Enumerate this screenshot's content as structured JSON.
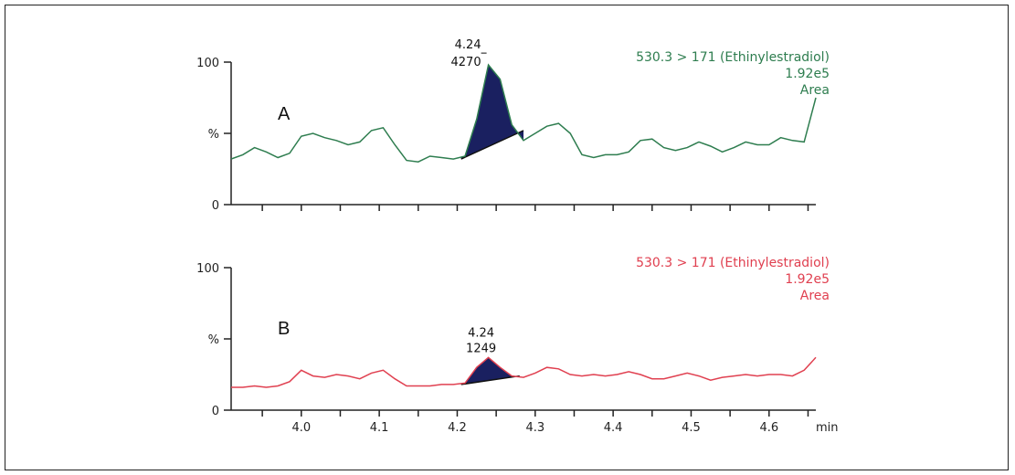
{
  "chart_data": [
    {
      "type": "line",
      "panel_label": "A",
      "color": "#2e7d4f",
      "fill_color": "#1a2060",
      "info_lines": [
        "530.3 > 171 (Ethinylestradiol)",
        "1.92e5",
        "Area"
      ],
      "y_tick_labels": [
        "100",
        "%",
        "0"
      ],
      "ylim": [
        0,
        100
      ],
      "xlim": [
        3.91,
        4.66
      ],
      "x": [
        3.91,
        3.925,
        3.94,
        3.955,
        3.97,
        3.985,
        4.0,
        4.015,
        4.03,
        4.045,
        4.06,
        4.075,
        4.09,
        4.105,
        4.12,
        4.135,
        4.15,
        4.165,
        4.18,
        4.195,
        4.21,
        4.225,
        4.24,
        4.255,
        4.27,
        4.285,
        4.3,
        4.315,
        4.33,
        4.345,
        4.36,
        4.375,
        4.39,
        4.405,
        4.42,
        4.435,
        4.45,
        4.465,
        4.48,
        4.495,
        4.51,
        4.525,
        4.54,
        4.555,
        4.57,
        4.585,
        4.6,
        4.615,
        4.63,
        4.645,
        4.66
      ],
      "y": [
        32,
        35,
        40,
        37,
        33,
        36,
        48,
        50,
        47,
        45,
        42,
        44,
        52,
        54,
        42,
        31,
        30,
        34,
        33,
        32,
        34,
        60,
        98,
        88,
        56,
        45,
        50,
        55,
        57,
        50,
        35,
        33,
        35,
        35,
        37,
        45,
        46,
        40,
        38,
        40,
        44,
        41,
        37,
        40,
        44,
        42,
        42,
        47,
        45,
        44,
        75
      ],
      "peak": {
        "rt_label": "4.24",
        "area_label": "4270",
        "start": 4.205,
        "end": 4.285,
        "baseline_start_y": 32,
        "baseline_end_y": 52
      }
    },
    {
      "type": "line",
      "panel_label": "B",
      "color": "#e04050",
      "fill_color": "#1a2060",
      "info_lines": [
        "530.3 > 171 (Ethinylestradiol)",
        "1.92e5",
        "Area"
      ],
      "y_tick_labels": [
        "100",
        "%",
        "0"
      ],
      "ylim": [
        0,
        100
      ],
      "xlim": [
        3.91,
        4.66
      ],
      "x": [
        3.91,
        3.925,
        3.94,
        3.955,
        3.97,
        3.985,
        4.0,
        4.015,
        4.03,
        4.045,
        4.06,
        4.075,
        4.09,
        4.105,
        4.12,
        4.135,
        4.15,
        4.165,
        4.18,
        4.195,
        4.21,
        4.225,
        4.24,
        4.255,
        4.27,
        4.285,
        4.3,
        4.315,
        4.33,
        4.345,
        4.36,
        4.375,
        4.39,
        4.405,
        4.42,
        4.435,
        4.45,
        4.465,
        4.48,
        4.495,
        4.51,
        4.525,
        4.54,
        4.555,
        4.57,
        4.585,
        4.6,
        4.615,
        4.63,
        4.645,
        4.66
      ],
      "y": [
        16,
        16,
        17,
        16,
        17,
        20,
        28,
        24,
        23,
        25,
        24,
        22,
        26,
        28,
        22,
        17,
        17,
        17,
        18,
        18,
        19,
        30,
        37,
        30,
        24,
        23,
        26,
        30,
        29,
        25,
        24,
        25,
        24,
        25,
        27,
        25,
        22,
        22,
        24,
        26,
        24,
        21,
        23,
        24,
        25,
        24,
        25,
        25,
        24,
        28,
        37
      ],
      "peak": {
        "rt_label": "4.24",
        "area_label": "1249",
        "start": 4.205,
        "end": 4.28,
        "baseline_start_y": 18,
        "baseline_end_y": 24
      }
    }
  ],
  "x_axis": {
    "ticks": [
      3.95,
      4.0,
      4.05,
      4.1,
      4.15,
      4.2,
      4.25,
      4.3,
      4.35,
      4.4,
      4.45,
      4.5,
      4.55,
      4.6,
      4.65
    ],
    "labels": [
      {
        "v": 4.0,
        "t": "4.0"
      },
      {
        "v": 4.1,
        "t": "4.1"
      },
      {
        "v": 4.2,
        "t": "4.2"
      },
      {
        "v": 4.3,
        "t": "4.3"
      },
      {
        "v": 4.4,
        "t": "4.4"
      },
      {
        "v": 4.5,
        "t": "4.5"
      },
      {
        "v": 4.6,
        "t": "4.6"
      }
    ],
    "unit": "min"
  }
}
